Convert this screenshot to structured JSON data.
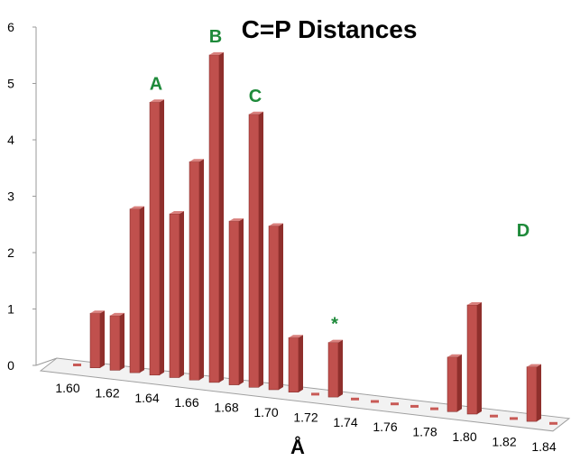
{
  "chart_data": {
    "type": "bar",
    "title": "C=P Distances",
    "xlabel": "Å",
    "ylabel": "",
    "ylim": [
      0,
      6
    ],
    "yticks": [
      "0",
      "1",
      "2",
      "3",
      "4",
      "5",
      "6"
    ],
    "grid": false,
    "legend": "none",
    "style": "3d-columns",
    "bar_color": "#c0504d",
    "x": [
      1.6,
      1.61,
      1.62,
      1.63,
      1.64,
      1.65,
      1.66,
      1.67,
      1.68,
      1.69,
      1.7,
      1.71,
      1.72,
      1.73,
      1.74,
      1.75,
      1.76,
      1.77,
      1.78,
      1.79,
      1.8,
      1.81,
      1.82,
      1.83,
      1.84
    ],
    "xtick_labels": [
      "1.60",
      "1.62",
      "1.64",
      "1.66",
      "1.68",
      "1.70",
      "1.72",
      "1.74",
      "1.76",
      "1.78",
      "1.80",
      "1.82",
      "1.84"
    ],
    "series": [
      {
        "values": [
          0,
          1,
          1,
          3,
          5,
          3,
          4,
          6,
          3,
          5,
          3,
          1,
          0,
          1,
          0,
          0,
          0,
          0,
          0,
          1,
          2,
          0,
          0,
          1,
          0
        ]
      }
    ],
    "annotations": [
      {
        "text": "A",
        "x": 1.64,
        "color": "#1e8a3a"
      },
      {
        "text": "B",
        "x": 1.67,
        "color": "#1e8a3a"
      },
      {
        "text": "C",
        "x": 1.69,
        "color": "#1e8a3a"
      },
      {
        "text": "*",
        "x": 1.73,
        "color": "#1e8a3a"
      },
      {
        "text": "D",
        "x": 1.81,
        "color": "#1e8a3a"
      }
    ]
  }
}
